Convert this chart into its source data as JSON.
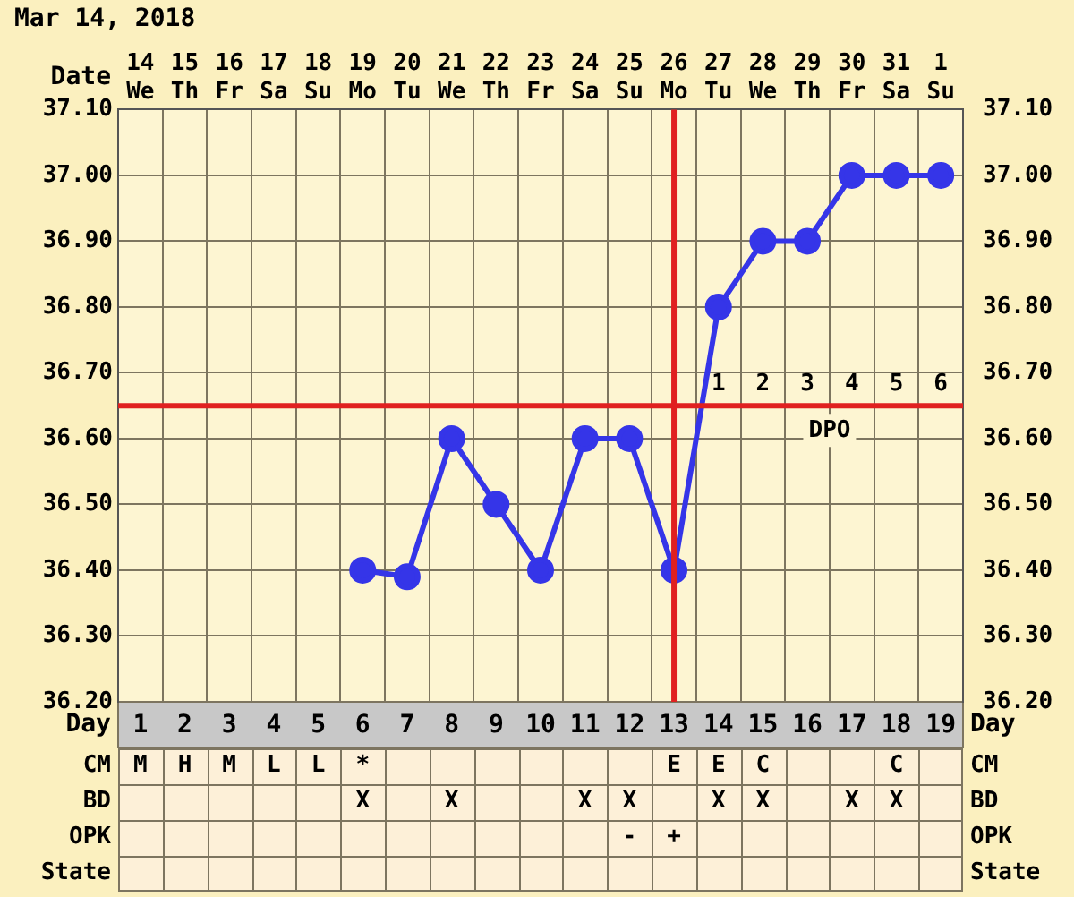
{
  "chart_data": {
    "type": "line",
    "title": "Mar 14, 2018",
    "xlabel": "Date",
    "x2label": "Day",
    "categories": [
      "14 We",
      "15 Th",
      "16 Fr",
      "17 Sa",
      "18 Su",
      "19 Mo",
      "20 Tu",
      "21 We",
      "22 Th",
      "23 Fr",
      "24 Sa",
      "25 Su",
      "26 Mo",
      "27 Tu",
      "28 We",
      "29 Th",
      "30 Fr",
      "31 Sa",
      "1 Su"
    ],
    "series": [
      {
        "color": "#3535e8",
        "values": [
          null,
          null,
          null,
          null,
          null,
          36.4,
          36.39,
          36.6,
          36.5,
          36.4,
          36.6,
          36.6,
          36.4,
          36.8,
          36.9,
          36.9,
          37.0,
          37.0,
          37.0
        ]
      }
    ],
    "ylim": [
      36.2,
      37.1
    ],
    "yticks": [
      {
        "value": 36.2,
        "label": "36.20"
      },
      {
        "value": 36.3,
        "label": "36.30"
      },
      {
        "value": 36.4,
        "label": "36.40"
      },
      {
        "value": 36.5,
        "label": "36.50"
      },
      {
        "value": 36.6,
        "label": "36.60"
      },
      {
        "value": 36.7,
        "label": "36.70"
      },
      {
        "value": 36.8,
        "label": "36.80"
      },
      {
        "value": 36.9,
        "label": "36.90"
      },
      {
        "value": 37.0,
        "label": "37.00"
      },
      {
        "value": 37.1,
        "label": "37.10"
      }
    ],
    "y2lim": [
      36.2,
      37.1
    ],
    "y2ticks": [
      {
        "value": 36.2,
        "label": "36.20"
      },
      {
        "value": 36.3,
        "label": "36.30"
      },
      {
        "value": 36.4,
        "label": "36.40"
      },
      {
        "value": 36.5,
        "label": "36.50"
      },
      {
        "value": 36.6,
        "label": "36.60"
      },
      {
        "value": 36.7,
        "label": "36.70"
      },
      {
        "value": 36.8,
        "label": "36.80"
      },
      {
        "value": 36.9,
        "label": "36.90"
      },
      {
        "value": 37.0,
        "label": "37.00"
      },
      {
        "value": 37.1,
        "label": "37.10"
      }
    ],
    "x2lim": [
      0.5,
      19.5
    ],
    "x2ticks": [
      1,
      2,
      3,
      4,
      5,
      6,
      7,
      8,
      9,
      10,
      11,
      12,
      13,
      14,
      15,
      16,
      17,
      18,
      19
    ],
    "grid": true,
    "legend": false,
    "marker": "circle",
    "line_style": "solid",
    "ref_lines": [
      {
        "axis": "y",
        "value": 36.65,
        "color": "#e02020"
      },
      {
        "axis": "x",
        "value": "26 Mo",
        "color": "#e02020"
      }
    ],
    "annotations": [
      "DPO",
      null,
      null,
      null,
      null,
      null,
      null,
      null,
      null,
      null,
      null,
      null,
      null,
      null,
      "1",
      "2",
      "3",
      "4",
      "5",
      "6",
      "CM",
      "M",
      "H",
      "M",
      "L",
      "L",
      "*",
      null,
      null,
      null,
      null,
      null,
      null,
      "E",
      "E",
      "C",
      null,
      null,
      "C",
      null,
      "BD",
      null,
      null,
      null,
      null,
      null,
      "X",
      null,
      "X",
      null,
      null,
      "X",
      "X",
      null,
      "X",
      "X",
      null,
      "X",
      "X",
      null,
      "OPK",
      null,
      null,
      null,
      null,
      null,
      null,
      null,
      null,
      null,
      null,
      null,
      "-",
      "+",
      null,
      null,
      null,
      null,
      null,
      null,
      "State",
      null,
      null,
      null,
      null,
      null,
      null,
      null,
      null,
      null,
      null,
      null,
      null,
      null,
      null,
      null,
      null,
      null,
      null,
      null
    ]
  }
}
